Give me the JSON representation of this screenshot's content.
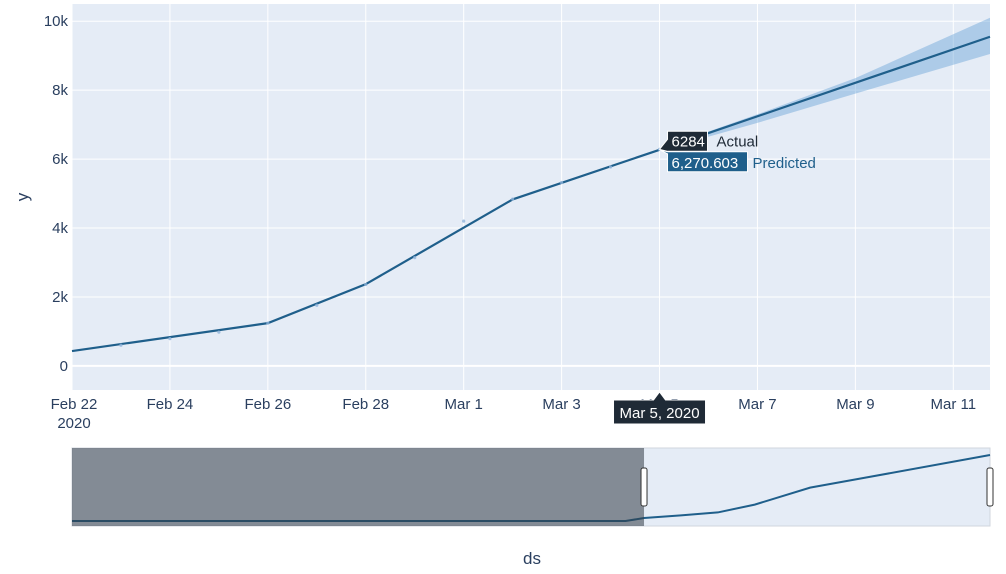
{
  "chart_data": {
    "type": "line",
    "title": "",
    "xlabel": "ds",
    "ylabel": "y",
    "x_range": [
      "2020-02-22",
      "2020-03-11T18:00"
    ],
    "ylim": [
      -700,
      10500
    ],
    "y_ticks": [
      0,
      2000,
      4000,
      6000,
      8000,
      10000
    ],
    "y_tick_labels": [
      "0",
      "2k",
      "4k",
      "6k",
      "8k",
      "10k"
    ],
    "x_ticks": [
      "2020-02-22",
      "2020-02-24",
      "2020-02-26",
      "2020-02-28",
      "2020-03-01",
      "2020-03-03",
      "2020-03-05",
      "2020-03-07",
      "2020-03-09",
      "2020-03-11"
    ],
    "x_tick_labels": [
      "Feb 22",
      "Feb 24",
      "Feb 26",
      "Feb 28",
      "Mar 1",
      "Mar 3",
      "Mar 5",
      "Mar 7",
      "Mar 9",
      "Mar 11"
    ],
    "x_tick_year": "2020",
    "grid": true,
    "series": [
      {
        "name": "Predicted",
        "kind": "line",
        "color": "#1f5f8b",
        "x": [
          "2020-02-22",
          "2020-02-26",
          "2020-02-28",
          "2020-03-02",
          "2020-03-05",
          "2020-03-11T18:00"
        ],
        "y": [
          430,
          1240,
          2370,
          4830,
          6270,
          9550
        ]
      },
      {
        "name": "Actual",
        "kind": "markers",
        "color": "#8fb3d9",
        "x": [
          "2020-02-23",
          "2020-02-24",
          "2020-02-25",
          "2020-02-26",
          "2020-02-27",
          "2020-02-28",
          "2020-02-29",
          "2020-03-01",
          "2020-03-02",
          "2020-03-03",
          "2020-03-04",
          "2020-03-05"
        ],
        "y": [
          600,
          790,
          980,
          1240,
          1760,
          2360,
          3140,
          4200,
          4840,
          5320,
          5770,
          6284
        ]
      }
    ],
    "uncertainty_band": {
      "color": "#5b9bd5",
      "x": [
        "2020-03-05",
        "2020-03-07",
        "2020-03-09",
        "2020-03-11T18:00"
      ],
      "upper": [
        6300,
        7300,
        8350,
        10100
      ],
      "lower": [
        6250,
        7050,
        7900,
        9050
      ]
    },
    "hover": {
      "date_label": "Mar 5, 2020",
      "actual_value": "6284",
      "actual_label": "Actual",
      "predicted_value": "6,270.603",
      "predicted_label": "Predicted",
      "actual_bg": "#1f2a36",
      "predicted_bg": "#1f5f8b",
      "x": "2020-03-05"
    },
    "rangeslider": {
      "x_range": [
        "2020-01-22",
        "2020-03-11T18:00"
      ],
      "selected": [
        "2020-02-22",
        "2020-03-11T18:00"
      ],
      "line_x": [
        "2020-01-22",
        "2020-02-21",
        "2020-02-22",
        "2020-02-24",
        "2020-02-26",
        "2020-02-28",
        "2020-03-02",
        "2020-03-05",
        "2020-03-11T18:00"
      ],
      "line_y": [
        0,
        0,
        430,
        820,
        1240,
        2370,
        4830,
        6270,
        9550
      ]
    }
  }
}
